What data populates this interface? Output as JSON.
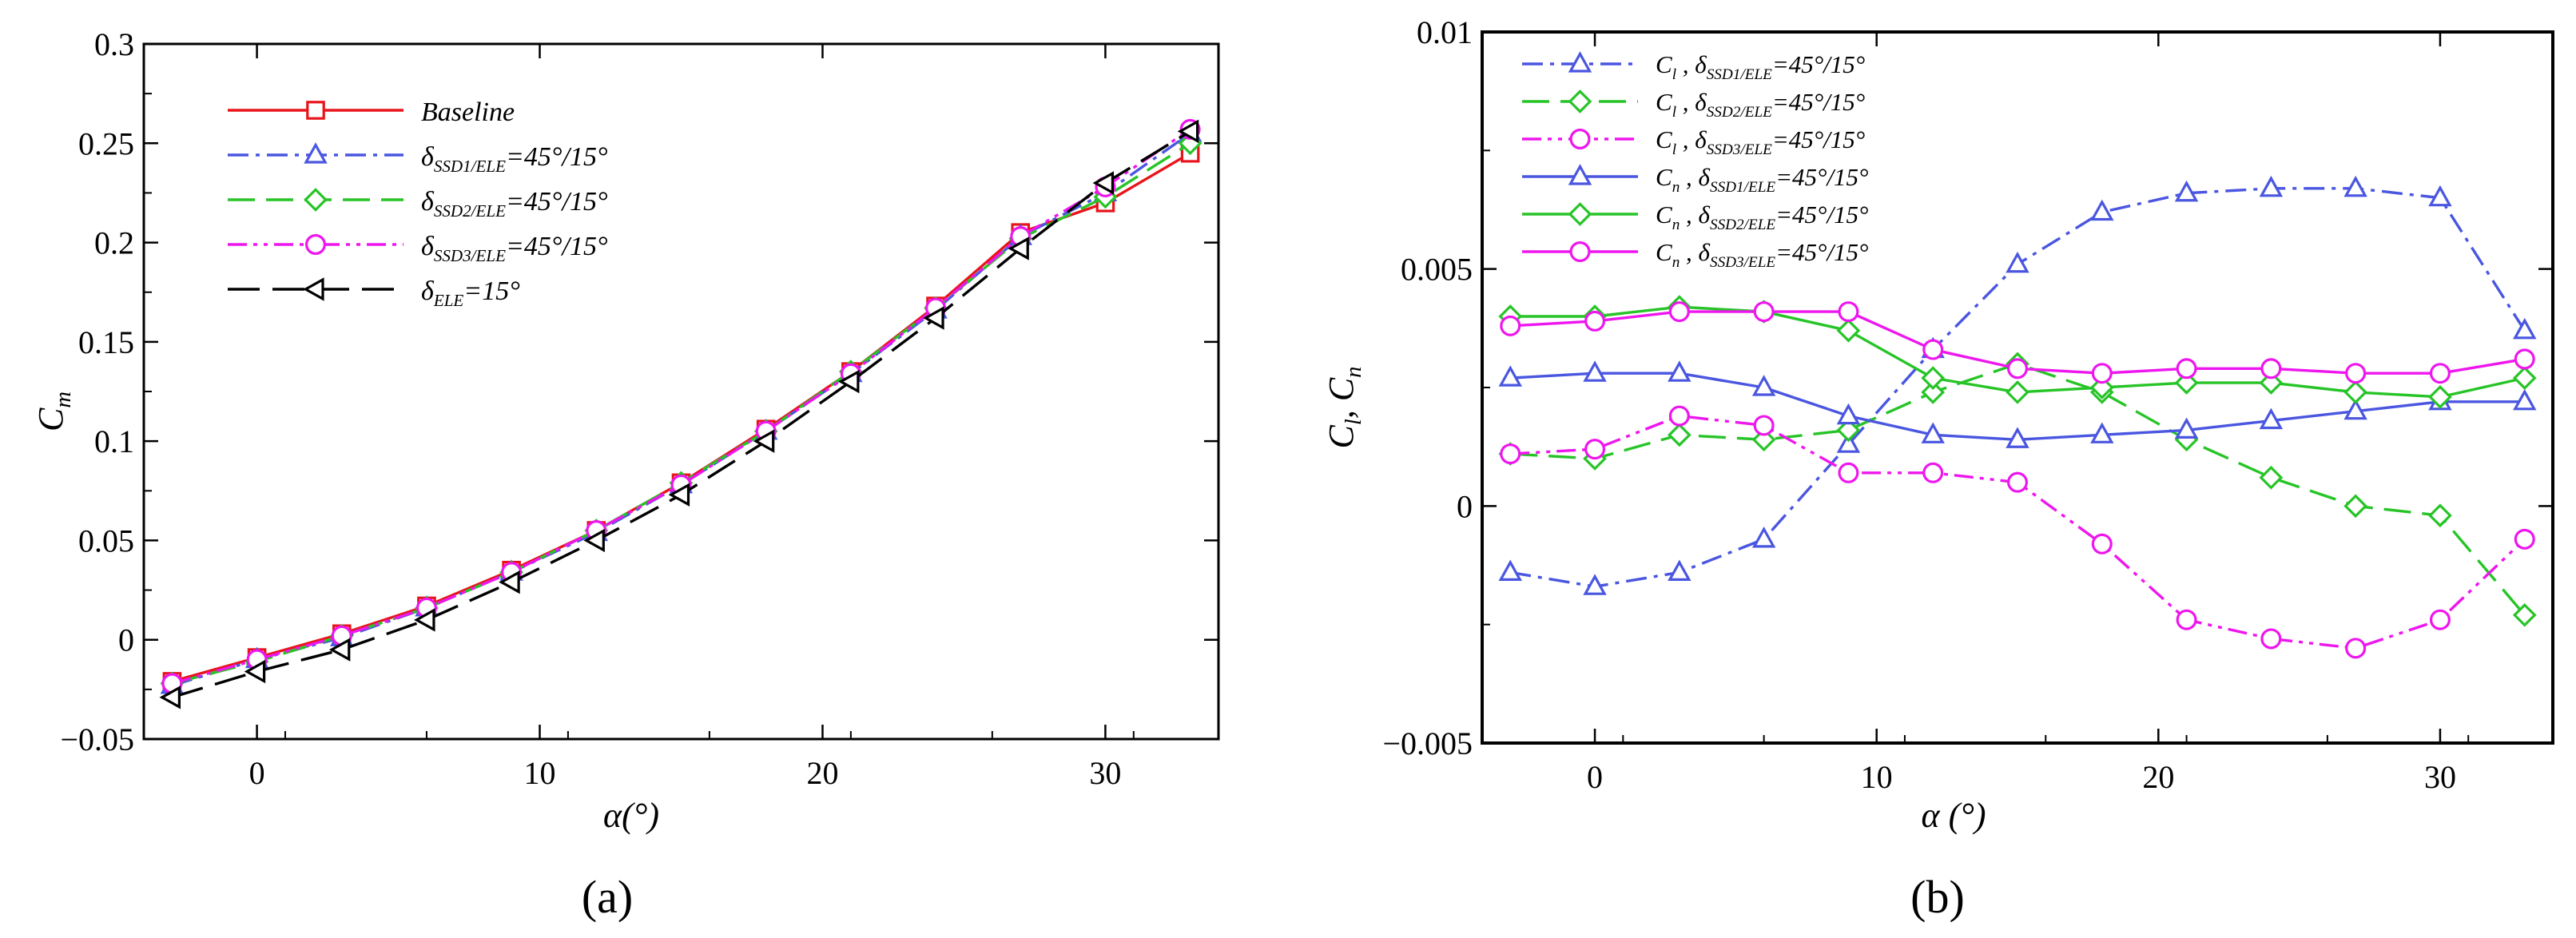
{
  "chart_data": [
    {
      "type": "line",
      "panel_label": "(a)",
      "xlabel": "α(°)",
      "ylabel": "C",
      "ylabel_sub": "m",
      "xlim": [
        -4,
        34
      ],
      "ylim": [
        -0.05,
        0.3
      ],
      "xticks": [
        "0",
        "10",
        "20",
        "30"
      ],
      "xtick_values": [
        0,
        10,
        20,
        30
      ],
      "yticks": [
        "−0.05",
        "0",
        "0.05",
        "0.1",
        "0.15",
        "0.2",
        "0.25",
        "0.3"
      ],
      "ytick_values": [
        -0.05,
        0,
        0.05,
        0.1,
        0.15,
        0.2,
        0.25,
        0.3
      ],
      "legend_position": "top-left",
      "x": [
        -3,
        0,
        3,
        6,
        9,
        12,
        15,
        18,
        21,
        24,
        27,
        30,
        33
      ],
      "series": [
        {
          "name": "Baseline",
          "legend": [
            {
              "t": "Baseline"
            }
          ],
          "color": "#e8141b",
          "dash": "solid",
          "marker": "square",
          "values": [
            -0.021,
            -0.009,
            0.003,
            0.017,
            0.035,
            0.055,
            0.079,
            0.106,
            0.135,
            0.168,
            0.205,
            0.22,
            0.245
          ]
        },
        {
          "name": "δSSD1/ELE=45°/15°",
          "legend": [
            {
              "t": "δ"
            },
            {
              "t": "SSD1/ELE",
              "sub": true
            },
            {
              "t": "=45°/15°"
            }
          ],
          "color": "#4a56e0",
          "dash": "dashdot",
          "marker": "triangle",
          "values": [
            -0.023,
            -0.01,
            0.001,
            0.016,
            0.034,
            0.054,
            0.078,
            0.105,
            0.134,
            0.166,
            0.203,
            0.225,
            0.255
          ]
        },
        {
          "name": "δSSD2/ELE=45°/15°",
          "legend": [
            {
              "t": "δ"
            },
            {
              "t": "SSD2/ELE",
              "sub": true
            },
            {
              "t": "=45°/15°"
            }
          ],
          "color": "#27c427",
          "dash": "dash",
          "marker": "diamond",
          "values": [
            -0.022,
            -0.011,
            0.002,
            0.016,
            0.034,
            0.055,
            0.079,
            0.105,
            0.135,
            0.167,
            0.202,
            0.223,
            0.25
          ]
        },
        {
          "name": "δSSD3/ELE=45°/15°",
          "legend": [
            {
              "t": "δ"
            },
            {
              "t": "SSD3/ELE",
              "sub": true
            },
            {
              "t": "=45°/15°"
            }
          ],
          "color": "#ee16ee",
          "dash": "dashdotdot",
          "marker": "circle",
          "values": [
            -0.022,
            -0.01,
            0.002,
            0.016,
            0.034,
            0.055,
            0.078,
            0.105,
            0.134,
            0.167,
            0.203,
            0.228,
            0.257
          ]
        },
        {
          "name": "δELE=15°",
          "legend": [
            {
              "t": "δ"
            },
            {
              "t": "ELE",
              "sub": true
            },
            {
              "t": "=15°"
            }
          ],
          "color": "#000000",
          "dash": "longdash",
          "marker": "triangle-left",
          "values": [
            -0.029,
            -0.016,
            -0.005,
            0.01,
            0.029,
            0.05,
            0.073,
            0.1,
            0.13,
            0.162,
            0.197,
            0.23,
            0.256
          ]
        }
      ]
    },
    {
      "type": "line",
      "panel_label": "(b)",
      "xlabel": "α (°)",
      "ylabel": "C, C",
      "ylabel_sub1": "l",
      "ylabel_sub2": "n",
      "xlim": [
        -4,
        34
      ],
      "ylim": [
        -0.005,
        0.01
      ],
      "xticks": [
        "0",
        "10",
        "20",
        "30"
      ],
      "xtick_values": [
        0,
        10,
        20,
        30
      ],
      "yticks": [
        "−0.005",
        "0",
        "0.005",
        "0.01"
      ],
      "ytick_values": [
        -0.005,
        0,
        0.005,
        0.01
      ],
      "legend_position": "top-left",
      "x": [
        -3,
        0,
        3,
        6,
        9,
        12,
        15,
        18,
        21,
        24,
        27,
        30,
        33
      ],
      "series": [
        {
          "name": "Cl, δSSD1/ELE=45°/15°",
          "legend": [
            {
              "t": "C"
            },
            {
              "t": "l",
              "sub": true
            },
            {
              "t": " , δ"
            },
            {
              "t": "SSD1/ELE",
              "sub": true
            },
            {
              "t": "=45°/15°"
            }
          ],
          "color": "#4a56e0",
          "dash": "dashdot",
          "marker": "triangle",
          "values": [
            -0.0014,
            -0.0017,
            -0.0014,
            -0.0007,
            0.0013,
            0.0033,
            0.0051,
            0.0062,
            0.0066,
            0.0067,
            0.0067,
            0.0065,
            0.0037
          ]
        },
        {
          "name": "Cl, δSSD2/ELE=45°/15°",
          "legend": [
            {
              "t": "C"
            },
            {
              "t": "l",
              "sub": true
            },
            {
              "t": " , δ"
            },
            {
              "t": "SSD2/ELE",
              "sub": true
            },
            {
              "t": "=45°/15°"
            }
          ],
          "color": "#27c427",
          "dash": "dash",
          "marker": "diamond",
          "values": [
            0.0011,
            0.001,
            0.0015,
            0.0014,
            0.0016,
            0.0024,
            0.003,
            0.0024,
            0.0014,
            0.0006,
            0.0,
            -0.0002,
            -0.0023
          ]
        },
        {
          "name": "Cl, δSSD3/ELE=45°/15°",
          "legend": [
            {
              "t": "C"
            },
            {
              "t": "l",
              "sub": true
            },
            {
              "t": " , δ"
            },
            {
              "t": "SSD3/ELE",
              "sub": true
            },
            {
              "t": "=45°/15°"
            }
          ],
          "color": "#ee16ee",
          "dash": "dashdotdot",
          "marker": "circle",
          "values": [
            0.0011,
            0.0012,
            0.0019,
            0.0017,
            0.0007,
            0.0007,
            0.0005,
            -0.0008,
            -0.0024,
            -0.0028,
            -0.003,
            -0.0024,
            -0.0007
          ]
        },
        {
          "name": "Cn, δSSD1/ELE=45°/15°",
          "legend": [
            {
              "t": "C"
            },
            {
              "t": "n",
              "sub": true
            },
            {
              "t": " , δ"
            },
            {
              "t": "SSD1/ELE",
              "sub": true
            },
            {
              "t": "=45°/15°"
            }
          ],
          "color": "#4a56e0",
          "dash": "solid",
          "marker": "triangle",
          "values": [
            0.0027,
            0.0028,
            0.0028,
            0.0025,
            0.0019,
            0.0015,
            0.0014,
            0.0015,
            0.0016,
            0.0018,
            0.002,
            0.0022,
            0.0022
          ]
        },
        {
          "name": "Cn, δSSD2/ELE=45°/15°",
          "legend": [
            {
              "t": "C"
            },
            {
              "t": "n",
              "sub": true
            },
            {
              "t": " , δ"
            },
            {
              "t": "SSD2/ELE",
              "sub": true
            },
            {
              "t": "=45°/15°"
            }
          ],
          "color": "#27c427",
          "dash": "solid",
          "marker": "diamond",
          "values": [
            0.004,
            0.004,
            0.0042,
            0.0041,
            0.0037,
            0.0027,
            0.0024,
            0.0025,
            0.0026,
            0.0026,
            0.0024,
            0.0023,
            0.0027
          ]
        },
        {
          "name": "Cn, δSSD3/ELE=45°/15°",
          "legend": [
            {
              "t": "C"
            },
            {
              "t": "n",
              "sub": true
            },
            {
              "t": " , δ"
            },
            {
              "t": "SSD3/ELE",
              "sub": true
            },
            {
              "t": "=45°/15°"
            }
          ],
          "color": "#ee16ee",
          "dash": "solid",
          "marker": "circle",
          "values": [
            0.0038,
            0.0039,
            0.0041,
            0.0041,
            0.0041,
            0.0033,
            0.0029,
            0.0028,
            0.0029,
            0.0029,
            0.0028,
            0.0028,
            0.0031
          ]
        }
      ]
    }
  ]
}
